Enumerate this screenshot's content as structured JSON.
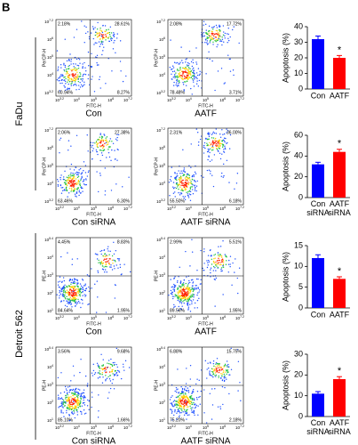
{
  "panel_label": "B",
  "cell_lines": [
    "FaDu",
    "Detroit 562"
  ],
  "tick_base": "10",
  "flow_rows": [
    {
      "y_axis_label": "PerCP-H",
      "x_axis_label": "FITC-H",
      "y_tick_exponents": [
        "3.2",
        "4",
        "5",
        "6",
        "7.2"
      ],
      "x_tick_exponents": [
        "3.2",
        "4",
        "5",
        "6",
        "7.2"
      ],
      "plots": [
        {
          "label": "Con",
          "quadrants": [
            "2.18%",
            "28.61%",
            "60.94%",
            "8.27%"
          ]
        },
        {
          "label": "AATF",
          "quadrants": [
            "2.08%",
            "17.72%",
            "78.48%",
            "3.71%"
          ]
        }
      ]
    },
    {
      "y_axis_label": "PerCP-H",
      "x_axis_label": "FITC-H",
      "y_tick_exponents": [
        "3.2",
        "4",
        "5",
        "6",
        "7.2"
      ],
      "x_tick_exponents": [
        "3.2",
        "4",
        "5",
        "6",
        "7.2"
      ],
      "plots": [
        {
          "label": "Con siRNA",
          "quadrants": [
            "2.06%",
            "27.38%",
            "63.46%",
            "6.30%"
          ]
        },
        {
          "label": "AATF siRNA",
          "quadrants": [
            "2.31%",
            "36.00%",
            "55.50%",
            "6.18%"
          ]
        }
      ]
    },
    {
      "y_axis_label": "PE-H",
      "x_axis_label": "FITC-H",
      "y_tick_exponents": [
        "1",
        "2",
        "3",
        "4",
        "5.4"
      ],
      "x_tick_exponents": [
        "3.2",
        "4",
        "5",
        "6",
        "7.2"
      ],
      "plots": [
        {
          "label": "Con",
          "quadrants": [
            "4.45%",
            "8.83%",
            "84.64%",
            "1.95%"
          ]
        },
        {
          "label": "AATF",
          "quadrants": [
            "2.99%",
            "5.51%",
            "89.56%",
            "1.95%"
          ]
        }
      ]
    },
    {
      "y_axis_label": "PE-H",
      "x_axis_label": "FITC-H",
      "y_tick_exponents": [
        "1",
        "2",
        "3",
        "4",
        "5.4"
      ],
      "x_tick_exponents": [
        "3.2",
        "4",
        "5",
        "6",
        "7.2"
      ],
      "plots": [
        {
          "label": "Con siRNA",
          "quadrants": [
            "3.56%",
            "9.68%",
            "85.10%",
            "1.66%"
          ]
        },
        {
          "label": "AATF siRNA",
          "quadrants": [
            "6.88%",
            "15.75%",
            "75.20%",
            "2.18%"
          ]
        }
      ]
    }
  ],
  "chart_data": [
    {
      "type": "bar",
      "y_label": "Apoptosis (%)",
      "categories": [
        "Con",
        "AATF"
      ],
      "values": [
        32,
        20
      ],
      "errors": [
        2,
        1.5
      ],
      "colors": [
        "#0000ff",
        "#ff0000"
      ],
      "ylim": [
        0,
        40
      ],
      "yticks": [
        0,
        10,
        20,
        30,
        40
      ],
      "annotation": "*"
    },
    {
      "type": "bar",
      "y_label": "Apoptosis (%)",
      "categories": [
        "Con siRNA",
        "AATF siRNA"
      ],
      "values": [
        32,
        44
      ],
      "errors": [
        2,
        2.5
      ],
      "colors": [
        "#0000ff",
        "#ff0000"
      ],
      "ylim": [
        0,
        60
      ],
      "yticks": [
        0,
        20,
        40,
        60
      ],
      "annotation": "*"
    },
    {
      "type": "bar",
      "y_label": "Apoptosis (%)",
      "categories": [
        "Con",
        "AATF"
      ],
      "values": [
        12,
        7
      ],
      "errors": [
        0.8,
        0.5
      ],
      "colors": [
        "#0000ff",
        "#ff0000"
      ],
      "ylim": [
        0,
        15
      ],
      "yticks": [
        0,
        5,
        10,
        15
      ],
      "annotation": "*"
    },
    {
      "type": "bar",
      "y_label": "Apoptosis (%)",
      "categories": [
        "Con siRNA",
        "AATF siRNA"
      ],
      "values": [
        11,
        18
      ],
      "errors": [
        1,
        1.2
      ],
      "colors": [
        "#0000ff",
        "#ff0000"
      ],
      "ylim": [
        0,
        30
      ],
      "yticks": [
        0,
        10,
        20,
        30
      ],
      "annotation": "*"
    }
  ]
}
